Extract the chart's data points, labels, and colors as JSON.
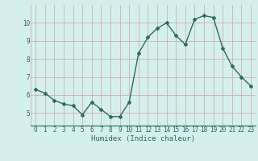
{
  "x": [
    0,
    1,
    2,
    3,
    4,
    5,
    6,
    7,
    8,
    9,
    10,
    11,
    12,
    13,
    14,
    15,
    16,
    17,
    18,
    19,
    20,
    21,
    22,
    23
  ],
  "y": [
    6.3,
    6.1,
    5.7,
    5.5,
    5.4,
    4.9,
    5.6,
    5.2,
    4.8,
    4.8,
    5.6,
    8.3,
    9.2,
    9.7,
    10.0,
    9.3,
    8.8,
    10.2,
    10.4,
    10.3,
    8.6,
    7.6,
    7.0,
    6.5
  ],
  "line_color": "#2e6b5e",
  "marker": "D",
  "marker_size": 2.0,
  "bg_color": "#d4efec",
  "grid_color": "#c8a8a8",
  "xlabel": "Humidex (Indice chaleur)",
  "xlabel_color": "#2e6b5e",
  "xlim": [
    -0.5,
    23.5
  ],
  "ylim": [
    4.3,
    11.0
  ],
  "yticks": [
    5,
    6,
    7,
    8,
    9,
    10
  ],
  "xticks": [
    0,
    1,
    2,
    3,
    4,
    5,
    6,
    7,
    8,
    9,
    10,
    11,
    12,
    13,
    14,
    15,
    16,
    17,
    18,
    19,
    20,
    21,
    22,
    23
  ],
  "tick_label_color": "#2e6b5e",
  "tick_label_fontsize": 5.5,
  "xlabel_fontsize": 6.5,
  "line_width": 1.0
}
